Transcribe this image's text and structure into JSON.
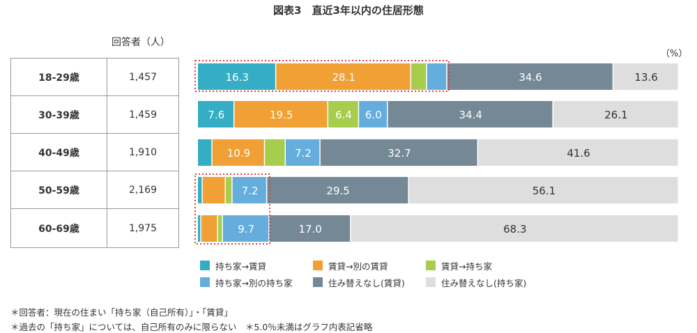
{
  "title": "図表3　直近3年以内の住居形態",
  "respondents_header": "回答者（人）",
  "chart_data": {
    "type": "bar",
    "orientation": "horizontal-stacked-100",
    "unit_label": "（%）",
    "categories": [
      "18-29歳",
      "30-39歳",
      "40-49歳",
      "50-59歳",
      "60-69歳"
    ],
    "respondents": [
      "1,457",
      "1,459",
      "1,910",
      "2,169",
      "1,975"
    ],
    "series": [
      {
        "name": "持ち家→賃貸",
        "color": "#35adc4",
        "values": [
          16.3,
          7.6,
          3.0,
          1.0,
          0.7
        ],
        "labels": [
          "16.3",
          "7.6",
          "",
          "",
          ""
        ]
      },
      {
        "name": "賃貸→別の賃貸",
        "color": "#f0a035",
        "values": [
          28.1,
          19.5,
          10.9,
          4.8,
          3.5
        ],
        "labels": [
          "28.1",
          "19.5",
          "10.9",
          "",
          ""
        ]
      },
      {
        "name": "賃貸→持ち家",
        "color": "#a6cd4c",
        "values": [
          3.3,
          6.4,
          4.3,
          1.4,
          1.0
        ],
        "labels": [
          "",
          "6.4",
          "",
          "",
          ""
        ]
      },
      {
        "name": "持ち家→別の持ち家",
        "color": "#64addd",
        "values": [
          4.2,
          6.0,
          7.2,
          7.2,
          9.7
        ],
        "labels": [
          "",
          "6.0",
          "7.2",
          "7.2",
          "9.7"
        ]
      },
      {
        "name": "住み替えなし(賃貸)",
        "color": "#758896",
        "values": [
          34.6,
          34.4,
          32.7,
          29.5,
          17.0
        ],
        "labels": [
          "34.6",
          "34.4",
          "32.7",
          "29.5",
          "17.0"
        ]
      },
      {
        "name": "住み替えなし(持ち家)",
        "color": "#dedede",
        "values": [
          13.6,
          26.1,
          41.6,
          56.1,
          68.3
        ],
        "labels": [
          "13.6",
          "26.1",
          "41.6",
          "56.1",
          "68.3"
        ]
      }
    ],
    "xlim": [
      0,
      100
    ],
    "legend_position": "bottom",
    "highlight_color": "#e53935"
  },
  "notes": [
    "＊回答者：現在の住まい「持ち家（自己所有）」・「賃貸」",
    "＊過去の「持ち家」については、自己所有のみに限らない　＊5.0％未満はグラフ内表記省略"
  ]
}
